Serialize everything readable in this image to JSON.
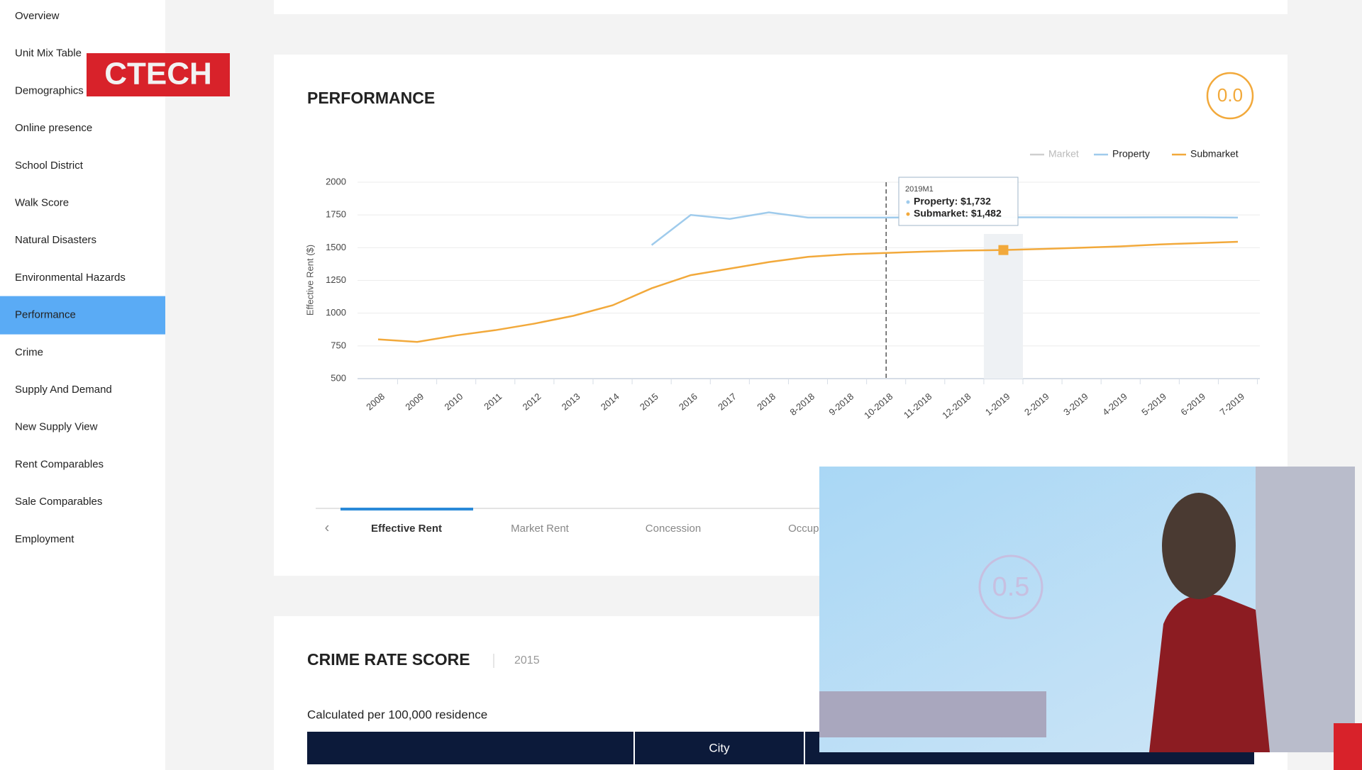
{
  "logo": "CTECH",
  "sidebar": {
    "items": [
      "Overview",
      "Unit Mix Table",
      "Demographics",
      "Online presence",
      "School District",
      "Walk Score",
      "Natural Disasters",
      "Environmental Hazards",
      "Performance",
      "Crime",
      "Supply And Demand",
      "New Supply View",
      "Rent Comparables",
      "Sale Comparables",
      "Employment"
    ],
    "active": 8
  },
  "performance": {
    "title": "PERFORMANCE",
    "score": "0.0",
    "tabs": [
      "Effective Rent",
      "Market Rent",
      "Concession",
      "Occupa"
    ],
    "active_tab": 0,
    "tooltip": {
      "title": "2019M1",
      "lines": [
        "Property: $1,732",
        "Submarket: $1,482"
      ]
    },
    "chart_data": {
      "type": "line",
      "y_label": "Effective Rent ($)",
      "categories": [
        "2008",
        "2009",
        "2010",
        "2011",
        "2012",
        "2013",
        "2014",
        "2015",
        "2016",
        "2017",
        "2018",
        "8-2018",
        "9-2018",
        "10-2018",
        "11-2018",
        "12-2018",
        "1-2019",
        "2-2019",
        "3-2019",
        "4-2019",
        "5-2019",
        "6-2019",
        "7-2019"
      ],
      "series": [
        {
          "name": "Market",
          "color": "#cfcfcf",
          "values": [
            null,
            null,
            null,
            null,
            null,
            null,
            null,
            null,
            null,
            null,
            null,
            null,
            null,
            null,
            null,
            null,
            null,
            null,
            null,
            null,
            null,
            null,
            null
          ]
        },
        {
          "name": "Property",
          "color": "#9fcbec",
          "values": [
            null,
            null,
            null,
            null,
            null,
            null,
            null,
            1520,
            1750,
            1720,
            1770,
            1730,
            1730,
            1730,
            1731,
            1731,
            1732,
            1732,
            1731,
            1731,
            1732,
            1732,
            1730
          ]
        },
        {
          "name": "Submarket",
          "color": "#f2a93b",
          "values": [
            800,
            780,
            830,
            870,
            920,
            980,
            1060,
            1190,
            1290,
            1340,
            1390,
            1430,
            1450,
            1460,
            1470,
            1478,
            1482,
            1490,
            1500,
            1510,
            1525,
            1535,
            1545
          ]
        }
      ],
      "ylim": [
        500,
        2000
      ],
      "yticks": [
        500,
        750,
        1000,
        1250,
        1500,
        1750,
        2000
      ],
      "grid": true,
      "legend": "top-right",
      "highlight_index": 16,
      "crosshair_index": 13
    }
  },
  "crime": {
    "title": "CRIME RATE SCORE",
    "year": "2015",
    "note": "Calculated per 100,000 residence",
    "table_header": [
      "",
      "City"
    ]
  },
  "video": {
    "text": "0.5"
  }
}
